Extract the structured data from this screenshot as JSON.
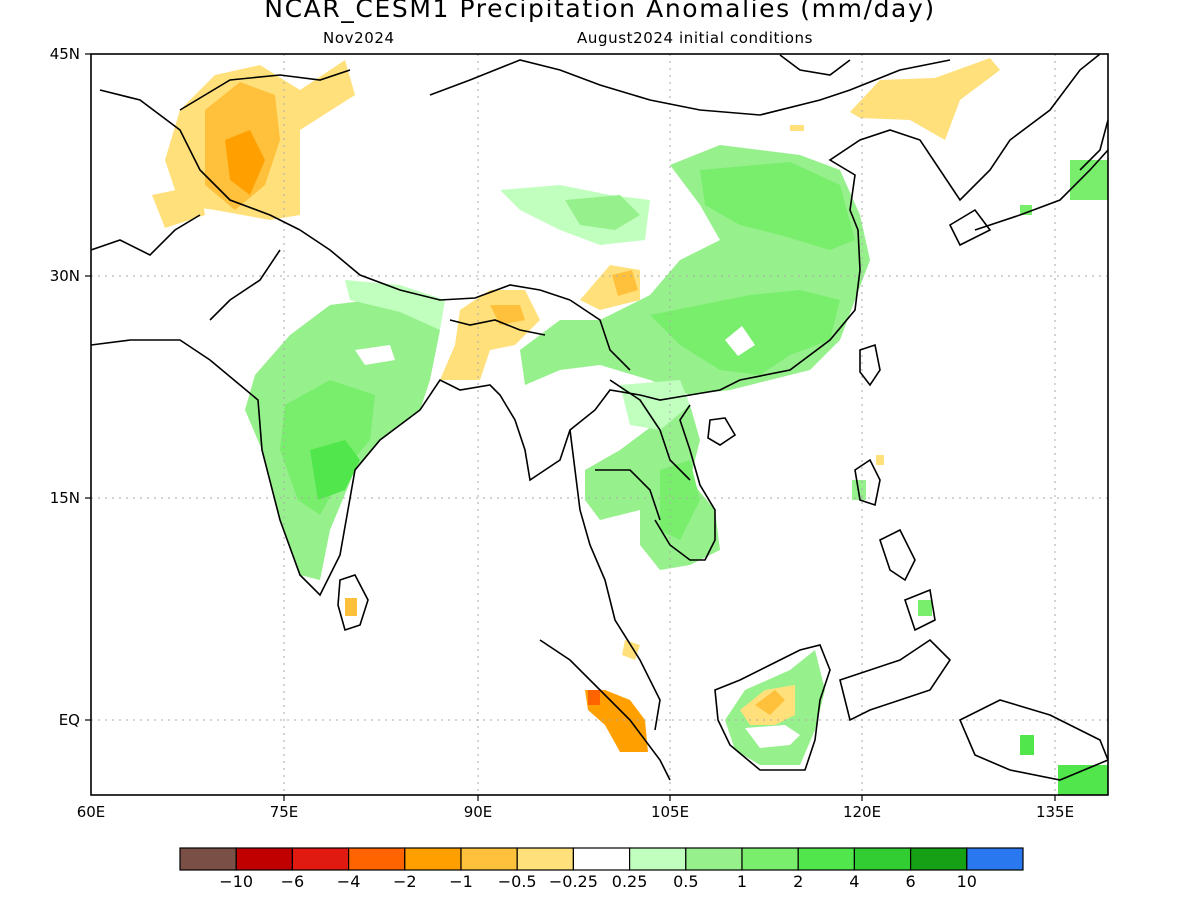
{
  "title": "NCAR_CESM1 Precipitation Anomalies (mm/day)",
  "subtitle_left": "Nov2024",
  "subtitle_right": "August2024 initial conditions",
  "lat_labels": [
    "45N",
    "30N",
    "15N",
    "EQ"
  ],
  "lon_labels": [
    "60E",
    "75E",
    "90E",
    "105E",
    "120E",
    "135E"
  ],
  "legend": {
    "colors": [
      "#7a4f46",
      "#c00000",
      "#e01a10",
      "#ff6400",
      "#ffa000",
      "#ffc03c",
      "#ffe07a",
      "#ffffff",
      "#c0ffbe",
      "#96f08c",
      "#78ee6c",
      "#50e64c",
      "#32cd32",
      "#16a016",
      "#2a78f0"
    ],
    "labels": [
      "−10",
      "−6",
      "−4",
      "−2",
      "−1",
      "−0.5",
      "−0.25",
      "0.25",
      "0.5",
      "1",
      "2",
      "4",
      "6",
      "10"
    ]
  }
}
